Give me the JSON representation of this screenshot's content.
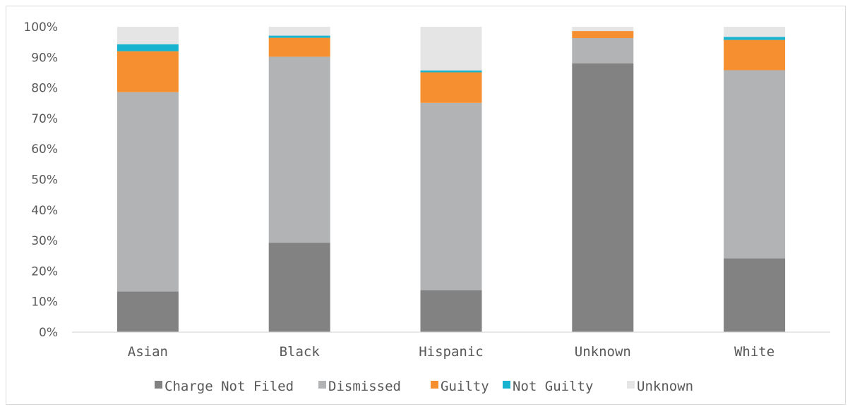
{
  "chart_data": {
    "type": "bar",
    "stacked": true,
    "percent": true,
    "categories": [
      "Asian",
      "Black",
      "Hispanic",
      "Unknown",
      "White"
    ],
    "series": [
      {
        "name": "Charge Not Filed",
        "color": "#828282",
        "values": [
          13.3,
          29.3,
          13.8,
          88.0,
          24.2
        ]
      },
      {
        "name": "Dismissed",
        "color": "#b2b3b4",
        "values": [
          65.3,
          60.9,
          61.3,
          8.3,
          61.6
        ]
      },
      {
        "name": "Guilty",
        "color": "#f58f30",
        "values": [
          13.4,
          6.2,
          10.0,
          2.3,
          9.9
        ]
      },
      {
        "name": "Not Guilty",
        "color": "#17b3cf",
        "values": [
          2.3,
          0.7,
          0.6,
          0.0,
          1.0
        ]
      },
      {
        "name": "Unknown",
        "color": "#e5e5e5",
        "values": [
          5.7,
          2.9,
          14.3,
          1.4,
          3.3
        ]
      }
    ],
    "ylim": [
      0,
      100
    ],
    "yticks": [
      "0%",
      "10%",
      "20%",
      "30%",
      "40%",
      "50%",
      "60%",
      "70%",
      "80%",
      "90%",
      "100%"
    ],
    "gridlines": false,
    "legend_position": "bottom"
  }
}
